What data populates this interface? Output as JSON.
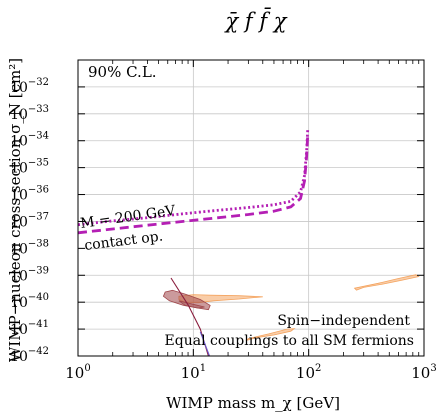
{
  "chart_data": {
    "type": "line",
    "title": "χ̄ f f̄ χ",
    "xlabel": "WIMP mass m_χ [GeV]",
    "ylabel": "WIMP−nucleon cross section σ_N [cm²]",
    "xscale": "log",
    "yscale": "log",
    "xlim": [
      1,
      1000
    ],
    "ylim": [
      1e-42,
      1e-31
    ],
    "grid": true,
    "x_ticks": [
      {
        "value": 1,
        "base": "10",
        "exp": "0"
      },
      {
        "value": 10,
        "base": "10",
        "exp": "1"
      },
      {
        "value": 100,
        "base": "10",
        "exp": "2"
      },
      {
        "value": 1000,
        "base": "10",
        "exp": "3"
      }
    ],
    "y_ticks": [
      {
        "value": -42,
        "base": "10",
        "exp": "−42"
      },
      {
        "value": -41,
        "base": "10",
        "exp": "−41"
      },
      {
        "value": -40,
        "base": "10",
        "exp": "−40"
      },
      {
        "value": -39,
        "base": "10",
        "exp": "−39"
      },
      {
        "value": -38,
        "base": "10",
        "exp": "−38"
      },
      {
        "value": -37,
        "base": "10",
        "exp": "−37"
      },
      {
        "value": -36,
        "base": "10",
        "exp": "−36"
      },
      {
        "value": -35,
        "base": "10",
        "exp": "−35"
      },
      {
        "value": -34,
        "base": "10",
        "exp": "−34"
      },
      {
        "value": -33,
        "base": "10",
        "exp": "−33"
      },
      {
        "value": -32,
        "base": "10",
        "exp": "−32"
      }
    ],
    "annotations": {
      "cl": "90% C.L.",
      "mass": "M = 200 GeV",
      "contact": "contact op.",
      "si": "Spin−independent",
      "couplings": "Equal couplings to all SM fermions"
    },
    "series": [
      {
        "name": "M = 200 GeV",
        "style": "dotted",
        "color": "#b41fb4",
        "points": [
          [
            1,
            -37.12
          ],
          [
            2,
            -36.98
          ],
          [
            4,
            -36.86
          ],
          [
            8,
            -36.72
          ],
          [
            15,
            -36.6
          ],
          [
            30,
            -36.48
          ],
          [
            50,
            -36.38
          ],
          [
            70,
            -36.25
          ],
          [
            85,
            -35.9
          ],
          [
            92,
            -35.3
          ],
          [
            96,
            -34.4
          ],
          [
            98,
            -33.6
          ]
        ]
      },
      {
        "name": "contact op.",
        "style": "dashed",
        "color": "#b41fb4",
        "points": [
          [
            1,
            -37.42
          ],
          [
            2,
            -37.28
          ],
          [
            4,
            -37.14
          ],
          [
            8,
            -37.0
          ],
          [
            15,
            -36.88
          ],
          [
            30,
            -36.74
          ],
          [
            50,
            -36.62
          ],
          [
            70,
            -36.46
          ],
          [
            85,
            -36.15
          ],
          [
            92,
            -35.5
          ],
          [
            96,
            -34.6
          ],
          [
            98,
            -33.8
          ]
        ]
      }
    ],
    "regions": [
      {
        "color": "#f4a460",
        "fill_opacity": 0.55,
        "points": [
          [
            7.5,
            -39.78
          ],
          [
            10,
            -39.72
          ],
          [
            14,
            -39.74
          ],
          [
            25,
            -39.76
          ],
          [
            40,
            -39.8
          ],
          [
            25,
            -39.88
          ],
          [
            15,
            -39.95
          ],
          [
            11,
            -40.02
          ],
          [
            8.5,
            -40.0
          ],
          [
            7.5,
            -39.9
          ]
        ]
      },
      {
        "color": "#f4a460",
        "fill_opacity": 0.55,
        "points": [
          [
            250,
            -39.48
          ],
          [
            400,
            -39.3
          ],
          [
            600,
            -39.12
          ],
          [
            850,
            -38.98
          ],
          [
            900,
            -39.05
          ],
          [
            650,
            -39.18
          ],
          [
            450,
            -39.32
          ],
          [
            300,
            -39.45
          ],
          [
            260,
            -39.55
          ]
        ]
      },
      {
        "color": "#f4a460",
        "fill_opacity": 0.55,
        "points": [
          [
            30,
            -41.35
          ],
          [
            45,
            -41.18
          ],
          [
            65,
            -41.0
          ],
          [
            75,
            -40.98
          ],
          [
            70,
            -41.08
          ],
          [
            50,
            -41.22
          ],
          [
            35,
            -41.32
          ],
          [
            29,
            -41.42
          ]
        ]
      },
      {
        "color": "#a0474b",
        "fill_opacity": 0.55,
        "points": [
          [
            5.7,
            -39.62
          ],
          [
            6.6,
            -39.56
          ],
          [
            8.5,
            -39.7
          ],
          [
            11.5,
            -39.9
          ],
          [
            14,
            -40.12
          ],
          [
            13.5,
            -40.28
          ],
          [
            11,
            -40.22
          ],
          [
            8.2,
            -40.12
          ],
          [
            6.2,
            -39.95
          ],
          [
            5.5,
            -39.78
          ]
        ]
      },
      {
        "color": "#a0474b",
        "fill_opacity": 0.45,
        "points": [
          [
            7.5,
            -39.95
          ],
          [
            10,
            -40.08
          ],
          [
            12.5,
            -40.18
          ],
          [
            11,
            -40.22
          ],
          [
            8.5,
            -40.12
          ]
        ]
      }
    ],
    "extra_lines": [
      {
        "color": "#8b1f3f",
        "points": [
          [
            6.4,
            -39.1
          ],
          [
            9,
            -40.1
          ],
          [
            11.5,
            -41.0
          ],
          [
            13.5,
            -42.0
          ]
        ]
      },
      {
        "color": "#6a5acd",
        "points": [
          [
            11.5,
            -41.1
          ],
          [
            13.8,
            -42.0
          ]
        ]
      }
    ]
  }
}
